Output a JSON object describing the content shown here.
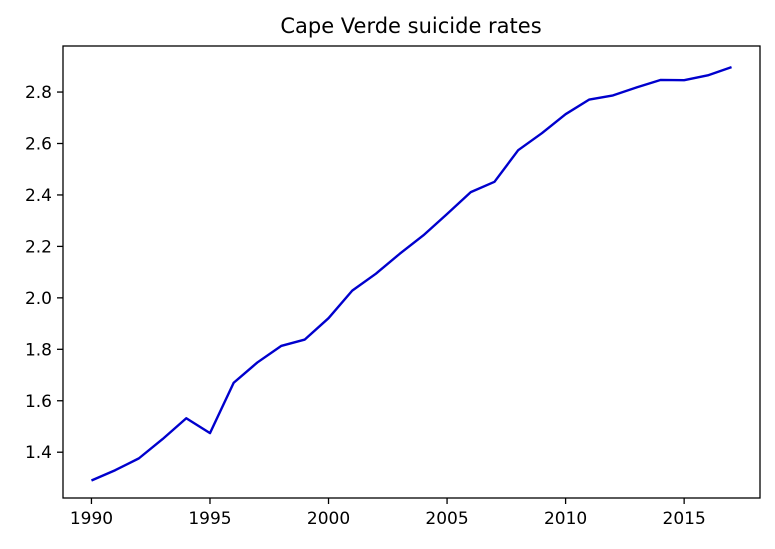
{
  "chart_data": {
    "type": "line",
    "title": "Cape Verde suicide rates",
    "xlabel": "",
    "ylabel": "",
    "xlim": [
      1988.8,
      2018.2
    ],
    "ylim": [
      1.222,
      2.979
    ],
    "x_ticks": [
      1990,
      1995,
      2000,
      2005,
      2010,
      2015
    ],
    "y_ticks": [
      1.4,
      1.6,
      1.8,
      2.0,
      2.2,
      2.4,
      2.6,
      2.8
    ],
    "x_tick_labels": [
      "1990",
      "1995",
      "2000",
      "2005",
      "2010",
      "2015"
    ],
    "y_tick_labels": [
      "1.4",
      "1.6",
      "1.8",
      "2.0",
      "2.2",
      "2.4",
      "2.6",
      "2.8"
    ],
    "grid": false,
    "line_color": "#0000cd",
    "series": [
      {
        "x": [
          1990,
          1991,
          1992,
          1993,
          1994,
          1995,
          1996,
          1997,
          1998,
          1999,
          2000,
          2001,
          2002,
          2003,
          2004,
          2005,
          2006,
          2007,
          2008,
          2009,
          2010,
          2011,
          2012,
          2013,
          2014,
          2015,
          2016,
          2017
        ],
        "y": [
          1.29,
          1.33,
          1.376,
          1.451,
          1.532,
          1.474,
          1.67,
          1.749,
          1.813,
          1.838,
          1.921,
          2.028,
          2.094,
          2.171,
          2.243,
          2.326,
          2.411,
          2.451,
          2.574,
          2.64,
          2.714,
          2.771,
          2.787,
          2.818,
          2.847,
          2.846,
          2.865,
          2.897
        ]
      }
    ]
  }
}
